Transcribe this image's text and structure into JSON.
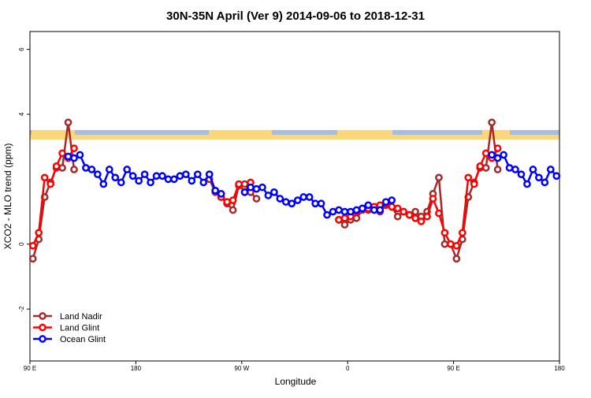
{
  "chart_data": {
    "type": "line",
    "title": "30N-35N April (Ver 9)   2014-09-06 to 2018-12-31",
    "x_label": "Longitude",
    "y_label": "XCO2 - MLO trend (ppm)",
    "x": [
      92.5,
      97.5,
      102.5,
      107.5,
      112.5,
      117.5,
      122.5,
      127.5,
      132.5,
      137.5,
      142.5,
      147.5,
      152.5,
      157.5,
      162.5,
      167.5,
      172.5,
      177.5,
      182.5,
      187.5,
      192.5,
      197.5,
      202.5,
      207.5,
      212.5,
      217.5,
      222.5,
      227.5,
      232.5,
      237.5,
      242.5,
      247.5,
      252.5,
      257.5,
      262.5,
      267.5,
      272.5,
      277.5,
      282.5,
      287.5,
      292.5,
      297.5,
      302.5,
      307.5,
      312.5,
      317.5,
      322.5,
      327.5,
      332.5,
      337.5,
      342.5,
      347.5,
      352.5,
      357.5,
      362.5,
      367.5,
      372.5,
      377.5,
      382.5,
      387.5,
      392.5,
      397.5,
      402.5,
      407.5,
      412.5,
      417.5,
      422.5,
      427.5,
      432.5,
      437.5,
      442.5,
      447.5,
      452.5,
      457.5,
      462.5,
      467.5,
      472.5,
      477.5,
      482.5,
      487.5,
      492.5,
      497.5,
      502.5,
      507.5,
      512.5,
      517.5,
      522.5,
      527.5,
      532.5,
      537.5
    ],
    "series": [
      {
        "name": "Land Nadir",
        "color": "#a52a2a",
        "values": [
          -0.45,
          0.15,
          1.45,
          1.9,
          2.35,
          2.35,
          3.75,
          2.3,
          null,
          null,
          null,
          null,
          null,
          null,
          null,
          null,
          null,
          null,
          null,
          null,
          null,
          null,
          null,
          null,
          null,
          null,
          null,
          null,
          null,
          null,
          2.0,
          1.6,
          1.45,
          1.25,
          1.05,
          1.8,
          1.85,
          1.6,
          1.4,
          null,
          null,
          null,
          null,
          null,
          null,
          null,
          null,
          null,
          null,
          null,
          null,
          null,
          0.75,
          0.6,
          0.75,
          0.8,
          1.05,
          1.05,
          1.1,
          1.0,
          1.2,
          1.15,
          0.85,
          1.0,
          0.9,
          1.0,
          0.85,
          1.0,
          1.55,
          2.05,
          0,
          0,
          -0.45,
          0.15,
          1.45,
          1.9,
          2.35,
          2.35,
          3.75,
          2.3,
          null,
          null,
          null,
          null,
          null,
          null,
          null,
          null,
          null,
          null
        ]
      },
      {
        "name": "Land Glint",
        "color": "#ff0000",
        "values": [
          -0.05,
          0.35,
          2.05,
          1.85,
          2.4,
          2.8,
          2.65,
          2.95,
          null,
          null,
          null,
          null,
          null,
          null,
          null,
          null,
          null,
          null,
          null,
          null,
          null,
          null,
          null,
          null,
          null,
          null,
          null,
          null,
          null,
          null,
          2.15,
          1.65,
          1.45,
          1.3,
          1.35,
          1.85,
          1.6,
          1.9,
          null,
          null,
          null,
          null,
          null,
          null,
          null,
          null,
          null,
          null,
          null,
          null,
          null,
          null,
          0.75,
          0.8,
          0.85,
          1.0,
          1.1,
          1.1,
          1.15,
          1.2,
          1.25,
          1.15,
          1.1,
          1.0,
          0.9,
          0.8,
          0.7,
          0.85,
          1.4,
          0.95,
          0.35,
          0,
          -0.05,
          0.35,
          2.05,
          1.85,
          2.4,
          2.8,
          2.65,
          2.95,
          null,
          null,
          null,
          null,
          null,
          null,
          null,
          null,
          null,
          null
        ]
      },
      {
        "name": "Ocean Glint",
        "color": "#0000ff",
        "values": [
          null,
          null,
          null,
          null,
          null,
          null,
          2.7,
          2.65,
          2.75,
          2.35,
          2.3,
          2.15,
          1.85,
          2.3,
          2.05,
          1.9,
          2.3,
          2.1,
          1.95,
          2.15,
          1.9,
          2.1,
          2.1,
          2.0,
          2.0,
          2.1,
          2.15,
          1.95,
          2.15,
          1.9,
          2.15,
          1.65,
          1.55,
          null,
          null,
          null,
          1.6,
          1.75,
          1.7,
          1.75,
          1.5,
          1.6,
          1.4,
          1.3,
          1.25,
          1.35,
          1.45,
          1.45,
          1.25,
          1.25,
          0.9,
          1.0,
          1.05,
          1.0,
          1.0,
          1.05,
          1.1,
          1.2,
          1.05,
          1.05,
          1.3,
          1.35,
          null,
          null,
          null,
          null,
          null,
          null,
          null,
          null,
          null,
          null,
          null,
          null,
          null,
          null,
          null,
          null,
          2.75,
          2.65,
          2.75,
          2.35,
          2.3,
          2.15,
          1.85,
          2.3,
          2.05,
          1.9,
          2.3,
          2.1
        ]
      }
    ],
    "xlim": [
      90,
      540
    ],
    "xticks": [
      {
        "value": 90,
        "label": "90 E"
      },
      {
        "value": 180,
        "label": "180"
      },
      {
        "value": 270,
        "label": "90 W"
      },
      {
        "value": 360,
        "label": "0"
      },
      {
        "value": 450,
        "label": "90 E"
      },
      {
        "value": 540,
        "label": "180"
      }
    ],
    "ylim": [
      -3.6,
      6.55
    ],
    "yticks": [
      -2,
      0,
      4,
      6
    ],
    "legend": "bottom-left"
  }
}
